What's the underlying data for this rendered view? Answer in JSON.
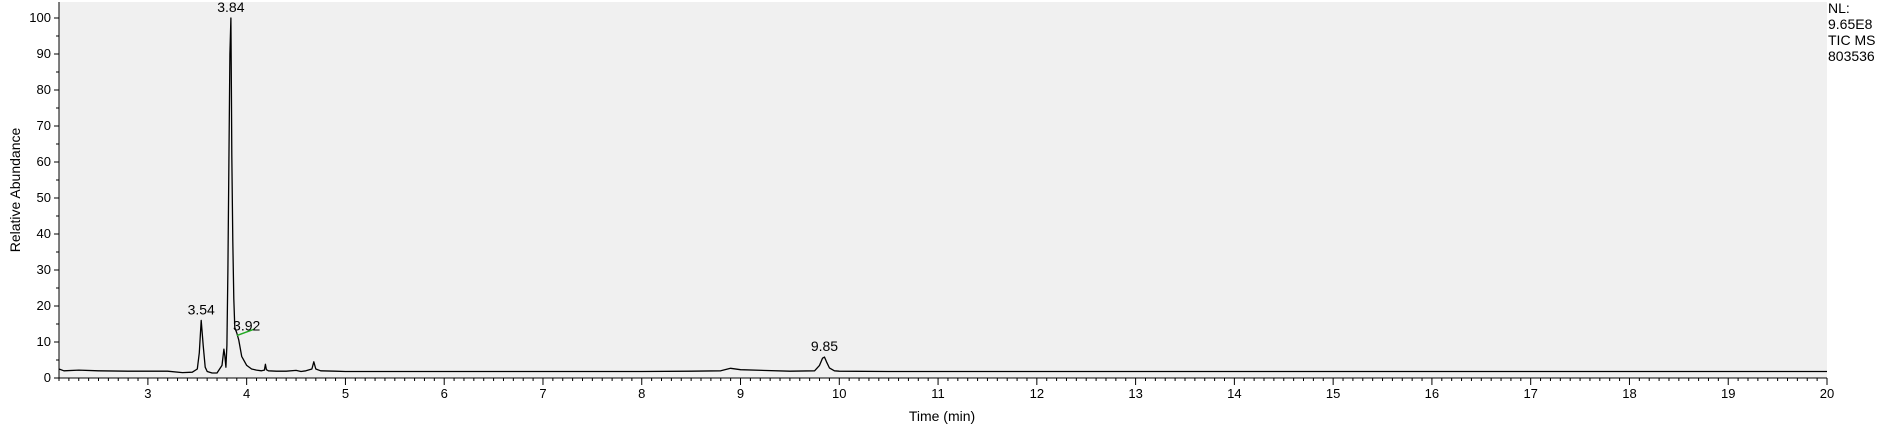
{
  "chart_data": {
    "type": "line",
    "title": "",
    "xlabel": "Time (min)",
    "ylabel": "Relative Abundance",
    "xlim": [
      2.1,
      20.0
    ],
    "ylim": [
      0,
      100
    ],
    "x_ticks": [
      "3",
      "4",
      "5",
      "6",
      "7",
      "8",
      "9",
      "10",
      "11",
      "12",
      "13",
      "14",
      "15",
      "16",
      "17",
      "18",
      "19",
      "20"
    ],
    "y_ticks": [
      "0",
      "10",
      "20",
      "30",
      "40",
      "50",
      "60",
      "70",
      "80",
      "90",
      "100"
    ],
    "grid": false,
    "colors": {
      "plot_bg": "#f0f0f0",
      "trace": "#000000",
      "baseline_mark": "#22aa22"
    },
    "series": [
      {
        "x": [
          2.1,
          2.15,
          2.3,
          2.5,
          2.8,
          3.0,
          3.2,
          3.35,
          3.45,
          3.5,
          3.52,
          3.54,
          3.56,
          3.58,
          3.6,
          3.65,
          3.7,
          3.75,
          3.77,
          3.78,
          3.79,
          3.8,
          3.81,
          3.82,
          3.83,
          3.84,
          3.845,
          3.85,
          3.86,
          3.87,
          3.88,
          3.9,
          3.92,
          3.95,
          4.0,
          4.05,
          4.1,
          4.15,
          4.18,
          4.19,
          4.2,
          4.22,
          4.3,
          4.4,
          4.5,
          4.55,
          4.6,
          4.66,
          4.68,
          4.7,
          4.75,
          4.9,
          5.0,
          5.5,
          6.0,
          6.5,
          7.0,
          7.5,
          8.0,
          8.5,
          8.8,
          8.9,
          9.0,
          9.5,
          9.75,
          9.8,
          9.83,
          9.85,
          9.87,
          9.9,
          9.95,
          10.0,
          10.5,
          11.0,
          11.5,
          12.0,
          12.5,
          13.0,
          13.5,
          14.0,
          15.0,
          16.0,
          17.0,
          18.0,
          19.0,
          20.0
        ],
        "y": [
          2.5,
          2.0,
          2.2,
          2.0,
          1.9,
          1.9,
          1.9,
          1.5,
          1.6,
          2.5,
          7.0,
          16.0,
          9.0,
          3.0,
          1.8,
          1.4,
          1.4,
          3.5,
          8.0,
          6.0,
          3.0,
          9.0,
          30.0,
          60.0,
          90.0,
          100.0,
          80.0,
          62.0,
          38.0,
          22.0,
          14.0,
          12.5,
          10.5,
          6.0,
          3.5,
          2.5,
          2.2,
          2.0,
          2.2,
          3.8,
          2.3,
          2.0,
          1.9,
          1.9,
          2.1,
          1.8,
          2.0,
          2.5,
          4.5,
          2.5,
          2.0,
          1.9,
          1.8,
          1.8,
          1.8,
          1.8,
          1.8,
          1.8,
          1.8,
          1.9,
          2.0,
          2.7,
          2.3,
          1.9,
          2.0,
          3.5,
          5.5,
          5.8,
          4.5,
          2.8,
          2.0,
          1.9,
          1.8,
          1.8,
          1.8,
          1.8,
          1.8,
          1.8,
          1.8,
          1.8,
          1.8,
          1.8,
          1.8,
          1.8,
          1.8,
          1.8
        ]
      }
    ],
    "annotations": [
      {
        "text": "3.84",
        "x": 3.84,
        "y": 100
      },
      {
        "text": "3.54",
        "x": 3.54,
        "y": 16
      },
      {
        "text": "3.92",
        "x": 4.0,
        "y": 11.5
      },
      {
        "text": "9.85",
        "x": 9.85,
        "y": 5.8
      }
    ]
  },
  "info": {
    "line1": "NL:",
    "line2": "9.65E8",
    "line3": "TIC  MS",
    "line4": "803536"
  }
}
